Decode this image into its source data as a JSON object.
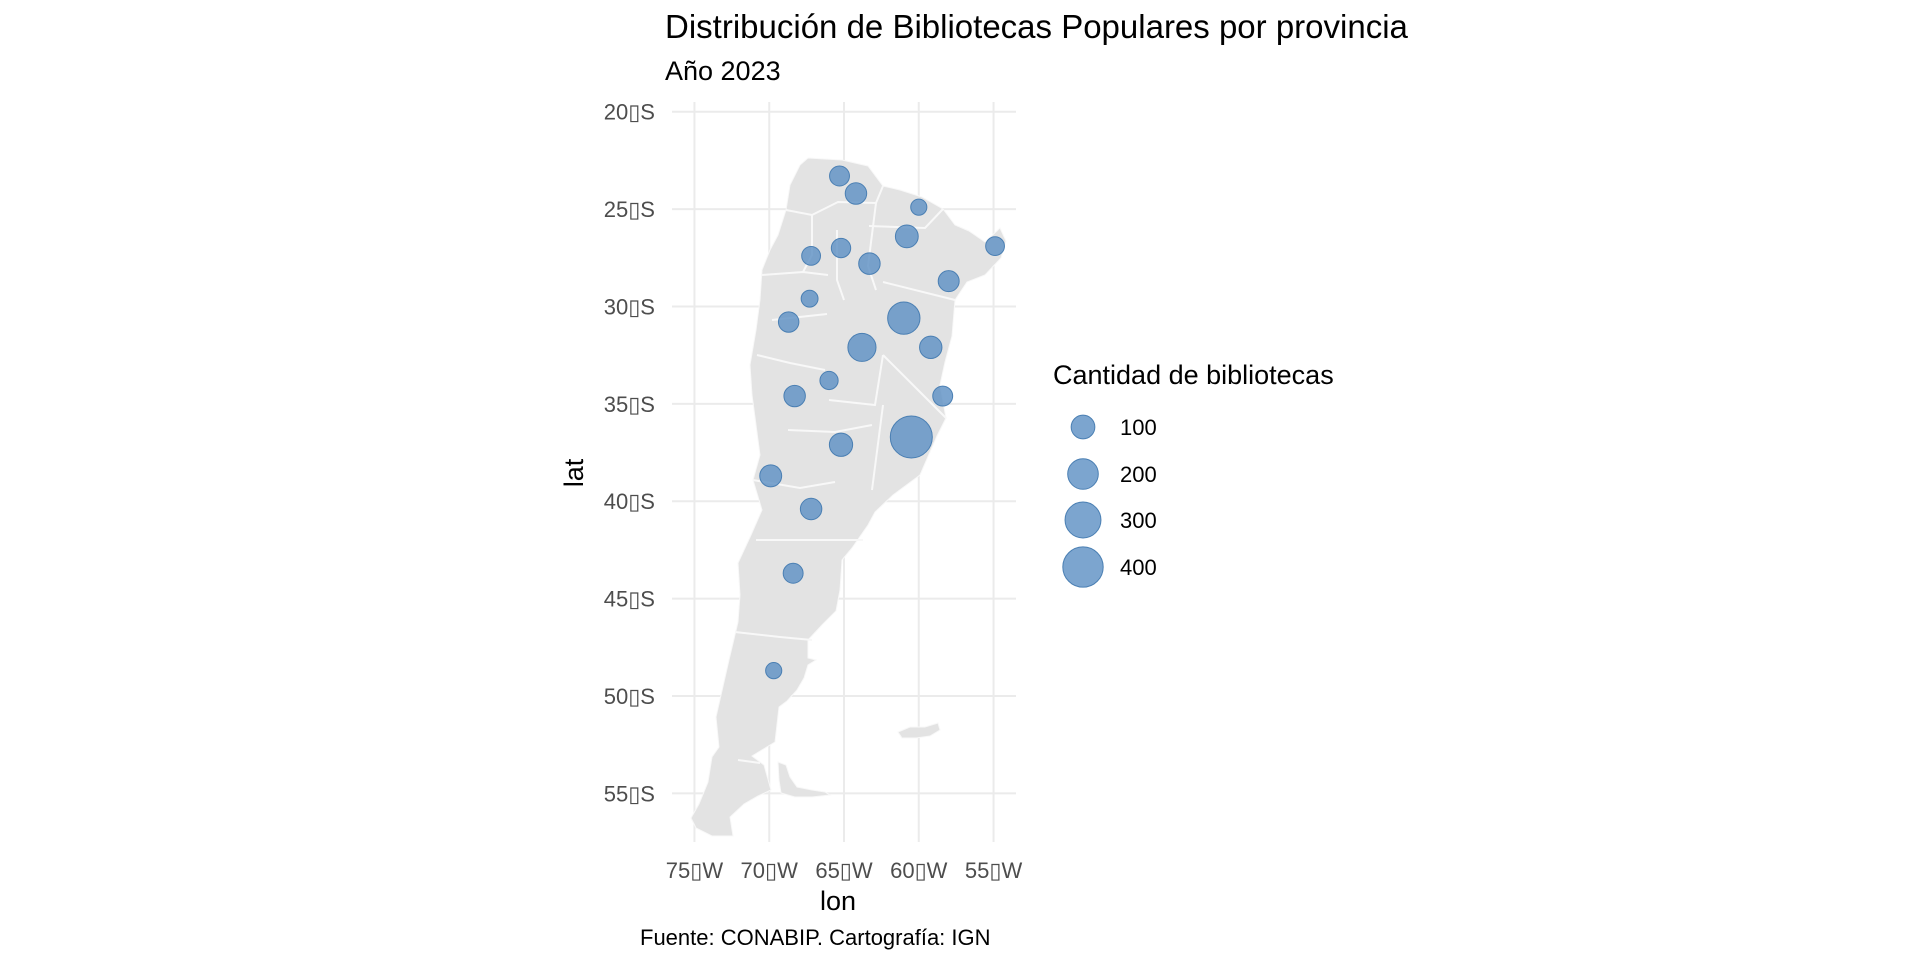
{
  "title": "Distribución de Bibliotecas Populares por provincia",
  "subtitle": "Año 2023",
  "caption": "Fuente: CONABIP. Cartografía: IGN",
  "colors": {
    "land": "#e3e3e3",
    "borders": "#f8f8f8",
    "bubble": "#5b8fc3",
    "grid": "#ebebeb"
  },
  "chart_data": {
    "type": "scatter",
    "xlabel": "lon",
    "ylabel": "lat",
    "xlim": [
      -76.5,
      -53.5
    ],
    "ylim": [
      -57.5,
      -19.5
    ],
    "x_ticks": [
      -75,
      -70,
      -65,
      -60,
      -55
    ],
    "x_tick_labels": [
      "75▯W",
      "70▯W",
      "65▯W",
      "60▯W",
      "55▯W"
    ],
    "y_ticks": [
      -20,
      -25,
      -30,
      -35,
      -40,
      -45,
      -50,
      -55
    ],
    "y_tick_labels": [
      "20▯S",
      "25▯S",
      "30▯S",
      "35▯S",
      "40▯S",
      "45▯S",
      "50▯S",
      "55▯S"
    ],
    "grid": true,
    "size_legend": {
      "title": "Cantidad de bibliotecas",
      "position": "right",
      "values": [
        100,
        200,
        300,
        400
      ],
      "labels": [
        "100",
        "200",
        "300",
        "400"
      ]
    },
    "points": [
      {
        "lon": -65.3,
        "lat": -23.3,
        "value": 60
      },
      {
        "lon": -64.2,
        "lat": -24.2,
        "value": 75
      },
      {
        "lon": -60.0,
        "lat": -24.9,
        "value": 30
      },
      {
        "lon": -54.9,
        "lat": -26.9,
        "value": 50
      },
      {
        "lon": -60.8,
        "lat": -26.4,
        "value": 90
      },
      {
        "lon": -67.2,
        "lat": -27.4,
        "value": 50
      },
      {
        "lon": -65.2,
        "lat": -27.0,
        "value": 55
      },
      {
        "lon": -63.3,
        "lat": -27.8,
        "value": 75
      },
      {
        "lon": -58.0,
        "lat": -28.7,
        "value": 70
      },
      {
        "lon": -67.3,
        "lat": -29.6,
        "value": 35
      },
      {
        "lon": -68.7,
        "lat": -30.8,
        "value": 65
      },
      {
        "lon": -61.0,
        "lat": -30.6,
        "value": 230
      },
      {
        "lon": -63.8,
        "lat": -32.1,
        "value": 160
      },
      {
        "lon": -59.2,
        "lat": -32.1,
        "value": 85
      },
      {
        "lon": -68.3,
        "lat": -34.6,
        "value": 75
      },
      {
        "lon": -66.0,
        "lat": -33.8,
        "value": 45
      },
      {
        "lon": -58.4,
        "lat": -34.6,
        "value": 60
      },
      {
        "lon": -60.5,
        "lat": -36.7,
        "value": 440
      },
      {
        "lon": -65.2,
        "lat": -37.1,
        "value": 95
      },
      {
        "lon": -69.9,
        "lat": -38.7,
        "value": 80
      },
      {
        "lon": -67.2,
        "lat": -40.4,
        "value": 75
      },
      {
        "lon": -68.4,
        "lat": -43.7,
        "value": 60
      },
      {
        "lon": -69.7,
        "lat": -48.7,
        "value": 30
      }
    ]
  }
}
